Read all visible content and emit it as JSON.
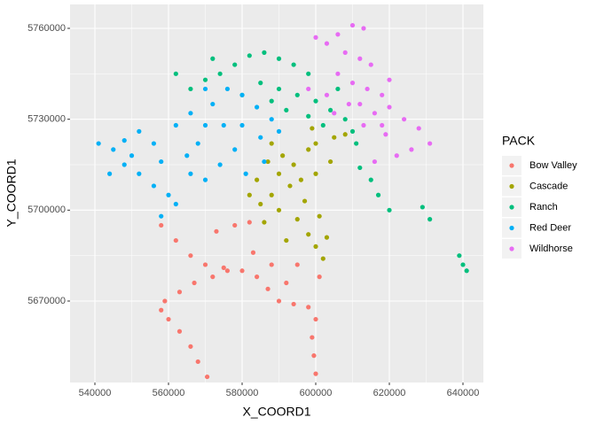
{
  "chart_data": {
    "type": "scatter",
    "x_label": "X_COORD1",
    "y_label": "Y_COORD1",
    "legend_title": "PACK",
    "xlim": [
      533250,
      645540
    ],
    "ylim": [
      5643120,
      5767890
    ],
    "xticks": [
      540000,
      560000,
      580000,
      600000,
      620000,
      640000
    ],
    "yticks": [
      5670000,
      5700000,
      5730000,
      5760000
    ],
    "grid": true,
    "legend": "right",
    "series": [
      {
        "name": "Bow Valley",
        "color": "#F8766D",
        "x": [
          570500,
          568000,
          566000,
          563000,
          560000,
          558000,
          559000,
          563000,
          567000,
          572000,
          576000,
          580000,
          584000,
          587000,
          590000,
          594000,
          598000,
          600000,
          599000,
          599500,
          600000,
          558000,
          562000,
          566000,
          570000,
          575000,
          583000,
          588000,
          592000,
          578000,
          582000,
          573000,
          595000,
          601000
        ],
        "y": [
          5645000,
          5650000,
          5655000,
          5660000,
          5664000,
          5667000,
          5670000,
          5673000,
          5676000,
          5678000,
          5680000,
          5680000,
          5678000,
          5674000,
          5670000,
          5669000,
          5668000,
          5664000,
          5658000,
          5652000,
          5646000,
          5695000,
          5690000,
          5685000,
          5682000,
          5681000,
          5686000,
          5682000,
          5676000,
          5695000,
          5696000,
          5693000,
          5682000,
          5678000
        ]
      },
      {
        "name": "Cascade",
        "color": "#A3A500",
        "x": [
          585000,
          588000,
          584000,
          590000,
          594000,
          598000,
          600000,
          605000,
          608000,
          590000,
          595000,
          598000,
          600000,
          602000,
          593000,
          597000,
          596000,
          591000,
          588000,
          600000,
          586000,
          592000,
          601000,
          604000,
          582000,
          587000,
          599000,
          603000
        ],
        "y": [
          5702000,
          5705000,
          5710000,
          5712000,
          5715000,
          5720000,
          5722000,
          5724000,
          5725000,
          5700000,
          5697000,
          5692000,
          5688000,
          5684000,
          5708000,
          5703000,
          5710000,
          5718000,
          5722000,
          5712000,
          5696000,
          5690000,
          5698000,
          5716000,
          5705000,
          5716000,
          5727000,
          5691000
        ]
      },
      {
        "name": "Ranch",
        "color": "#00BF7D",
        "x": [
          566000,
          570000,
          574000,
          578000,
          582000,
          586000,
          590000,
          594000,
          598000,
          585000,
          590000,
          595000,
          600000,
          592000,
          598000,
          604000,
          608000,
          610000,
          602000,
          588000,
          580000,
          572000,
          562000,
          612000,
          615000,
          617000,
          620000,
          629000,
          631000,
          639000,
          640000,
          641000,
          606000,
          611000
        ],
        "y": [
          5740000,
          5743000,
          5745000,
          5748000,
          5751000,
          5752000,
          5750000,
          5748000,
          5745000,
          5742000,
          5740000,
          5738000,
          5736000,
          5733000,
          5731000,
          5733000,
          5730000,
          5726000,
          5728000,
          5736000,
          5738000,
          5750000,
          5745000,
          5714000,
          5710000,
          5705000,
          5700000,
          5701000,
          5697000,
          5685000,
          5682000,
          5680000,
          5740000,
          5722000
        ]
      },
      {
        "name": "Red Deer",
        "color": "#00B0F6",
        "x": [
          541000,
          545000,
          548000,
          552000,
          556000,
          548000,
          552000,
          556000,
          560000,
          558000,
          562000,
          565000,
          568000,
          570000,
          566000,
          572000,
          576000,
          580000,
          584000,
          588000,
          590000,
          585000,
          578000,
          574000,
          570000,
          566000,
          581000,
          586000,
          575000,
          562000,
          544000,
          550000,
          558000,
          580000,
          570000
        ],
        "y": [
          5722000,
          5720000,
          5723000,
          5726000,
          5722000,
          5715000,
          5712000,
          5708000,
          5705000,
          5698000,
          5702000,
          5718000,
          5722000,
          5728000,
          5732000,
          5735000,
          5740000,
          5738000,
          5734000,
          5730000,
          5726000,
          5724000,
          5720000,
          5715000,
          5710000,
          5712000,
          5712000,
          5716000,
          5728000,
          5728000,
          5712000,
          5718000,
          5716000,
          5728000,
          5740000
        ]
      },
      {
        "name": "Wildhorse",
        "color": "#E76BF3",
        "x": [
          600000,
          603000,
          606000,
          610000,
          613000,
          608000,
          612000,
          606000,
          610000,
          614000,
          618000,
          620000,
          616000,
          612000,
          620000,
          615000,
          609000,
          605000,
          618000,
          624000,
          628000,
          631000,
          626000,
          622000,
          616000,
          598000,
          603000,
          613000,
          619000
        ],
        "y": [
          5757000,
          5755000,
          5758000,
          5761000,
          5760000,
          5752000,
          5750000,
          5745000,
          5742000,
          5740000,
          5738000,
          5734000,
          5732000,
          5735000,
          5743000,
          5748000,
          5735000,
          5732000,
          5728000,
          5730000,
          5727000,
          5722000,
          5720000,
          5718000,
          5716000,
          5740000,
          5738000,
          5728000,
          5725000
        ]
      }
    ]
  }
}
